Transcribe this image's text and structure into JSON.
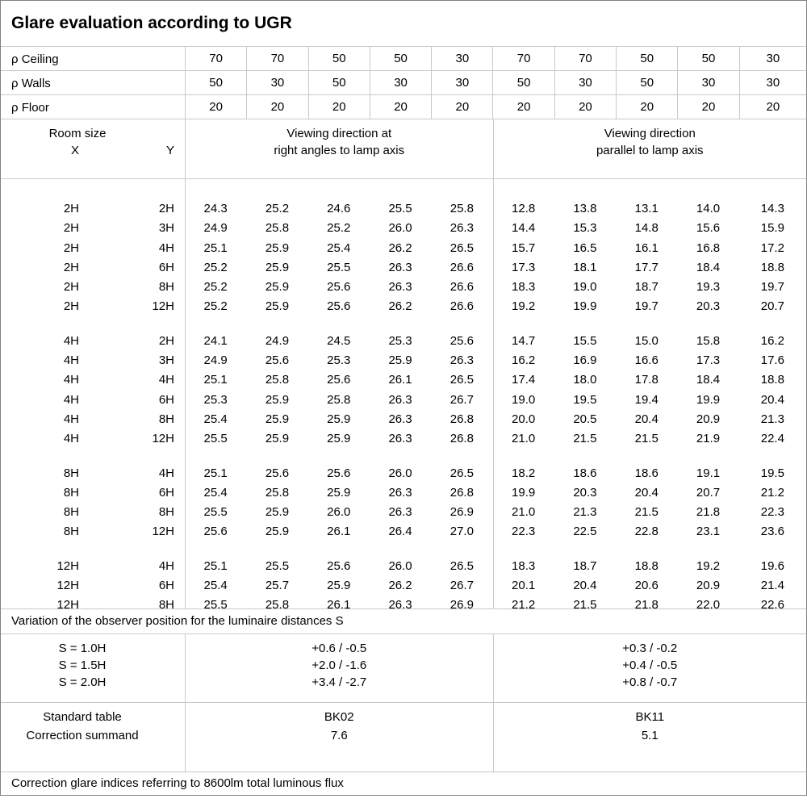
{
  "title": "Glare evaluation according to UGR",
  "reflectance_rows": [
    {
      "label": "ρ Ceiling",
      "values": [
        "70",
        "70",
        "50",
        "50",
        "30",
        "70",
        "70",
        "50",
        "50",
        "30"
      ]
    },
    {
      "label": "ρ Walls",
      "values": [
        "50",
        "30",
        "50",
        "30",
        "30",
        "50",
        "30",
        "50",
        "30",
        "30"
      ]
    },
    {
      "label": "ρ Floor",
      "values": [
        "20",
        "20",
        "20",
        "20",
        "20",
        "20",
        "20",
        "20",
        "20",
        "20"
      ]
    }
  ],
  "column_headers": {
    "room_size": "Room size",
    "x": "X",
    "y": "Y",
    "right_angles_line1": "Viewing direction at",
    "right_angles_line2": "right angles to lamp axis",
    "parallel_line1": "Viewing direction",
    "parallel_line2": "parallel to lamp axis"
  },
  "ugr_groups": [
    {
      "rows": [
        {
          "x": "2H",
          "y": "2H",
          "right_angles": [
            "24.3",
            "25.2",
            "24.6",
            "25.5",
            "25.8"
          ],
          "parallel": [
            "12.8",
            "13.8",
            "13.1",
            "14.0",
            "14.3"
          ]
        },
        {
          "x": "2H",
          "y": "3H",
          "right_angles": [
            "24.9",
            "25.8",
            "25.2",
            "26.0",
            "26.3"
          ],
          "parallel": [
            "14.4",
            "15.3",
            "14.8",
            "15.6",
            "15.9"
          ]
        },
        {
          "x": "2H",
          "y": "4H",
          "right_angles": [
            "25.1",
            "25.9",
            "25.4",
            "26.2",
            "26.5"
          ],
          "parallel": [
            "15.7",
            "16.5",
            "16.1",
            "16.8",
            "17.2"
          ]
        },
        {
          "x": "2H",
          "y": "6H",
          "right_angles": [
            "25.2",
            "25.9",
            "25.5",
            "26.3",
            "26.6"
          ],
          "parallel": [
            "17.3",
            "18.1",
            "17.7",
            "18.4",
            "18.8"
          ]
        },
        {
          "x": "2H",
          "y": "8H",
          "right_angles": [
            "25.2",
            "25.9",
            "25.6",
            "26.3",
            "26.6"
          ],
          "parallel": [
            "18.3",
            "19.0",
            "18.7",
            "19.3",
            "19.7"
          ]
        },
        {
          "x": "2H",
          "y": "12H",
          "right_angles": [
            "25.2",
            "25.9",
            "25.6",
            "26.2",
            "26.6"
          ],
          "parallel": [
            "19.2",
            "19.9",
            "19.7",
            "20.3",
            "20.7"
          ]
        }
      ]
    },
    {
      "rows": [
        {
          "x": "4H",
          "y": "2H",
          "right_angles": [
            "24.1",
            "24.9",
            "24.5",
            "25.3",
            "25.6"
          ],
          "parallel": [
            "14.7",
            "15.5",
            "15.0",
            "15.8",
            "16.2"
          ]
        },
        {
          "x": "4H",
          "y": "3H",
          "right_angles": [
            "24.9",
            "25.6",
            "25.3",
            "25.9",
            "26.3"
          ],
          "parallel": [
            "16.2",
            "16.9",
            "16.6",
            "17.3",
            "17.6"
          ]
        },
        {
          "x": "4H",
          "y": "4H",
          "right_angles": [
            "25.1",
            "25.8",
            "25.6",
            "26.1",
            "26.5"
          ],
          "parallel": [
            "17.4",
            "18.0",
            "17.8",
            "18.4",
            "18.8"
          ]
        },
        {
          "x": "4H",
          "y": "6H",
          "right_angles": [
            "25.3",
            "25.9",
            "25.8",
            "26.3",
            "26.7"
          ],
          "parallel": [
            "19.0",
            "19.5",
            "19.4",
            "19.9",
            "20.4"
          ]
        },
        {
          "x": "4H",
          "y": "8H",
          "right_angles": [
            "25.4",
            "25.9",
            "25.9",
            "26.3",
            "26.8"
          ],
          "parallel": [
            "20.0",
            "20.5",
            "20.4",
            "20.9",
            "21.3"
          ]
        },
        {
          "x": "4H",
          "y": "12H",
          "right_angles": [
            "25.5",
            "25.9",
            "25.9",
            "26.3",
            "26.8"
          ],
          "parallel": [
            "21.0",
            "21.5",
            "21.5",
            "21.9",
            "22.4"
          ]
        }
      ]
    },
    {
      "rows": [
        {
          "x": "8H",
          "y": "4H",
          "right_angles": [
            "25.1",
            "25.6",
            "25.6",
            "26.0",
            "26.5"
          ],
          "parallel": [
            "18.2",
            "18.6",
            "18.6",
            "19.1",
            "19.5"
          ]
        },
        {
          "x": "8H",
          "y": "6H",
          "right_angles": [
            "25.4",
            "25.8",
            "25.9",
            "26.3",
            "26.8"
          ],
          "parallel": [
            "19.9",
            "20.3",
            "20.4",
            "20.7",
            "21.2"
          ]
        },
        {
          "x": "8H",
          "y": "8H",
          "right_angles": [
            "25.5",
            "25.9",
            "26.0",
            "26.3",
            "26.9"
          ],
          "parallel": [
            "21.0",
            "21.3",
            "21.5",
            "21.8",
            "22.3"
          ]
        },
        {
          "x": "8H",
          "y": "12H",
          "right_angles": [
            "25.6",
            "25.9",
            "26.1",
            "26.4",
            "27.0"
          ],
          "parallel": [
            "22.3",
            "22.5",
            "22.8",
            "23.1",
            "23.6"
          ]
        }
      ]
    },
    {
      "rows": [
        {
          "x": "12H",
          "y": "4H",
          "right_angles": [
            "25.1",
            "25.5",
            "25.6",
            "26.0",
            "26.5"
          ],
          "parallel": [
            "18.3",
            "18.7",
            "18.8",
            "19.2",
            "19.6"
          ]
        },
        {
          "x": "12H",
          "y": "6H",
          "right_angles": [
            "25.4",
            "25.7",
            "25.9",
            "26.2",
            "26.7"
          ],
          "parallel": [
            "20.1",
            "20.4",
            "20.6",
            "20.9",
            "21.4"
          ]
        },
        {
          "x": "12H",
          "y": "8H",
          "right_angles": [
            "25.5",
            "25.8",
            "26.1",
            "26.3",
            "26.9"
          ],
          "parallel": [
            "21.2",
            "21.5",
            "21.8",
            "22.0",
            "22.6"
          ]
        }
      ]
    }
  ],
  "variation_section": {
    "title": "Variation of the observer position for the luminaire distances S",
    "rows": [
      {
        "label": "S = 1.0H",
        "right_angles": "+0.6 / -0.5",
        "parallel": "+0.3 / -0.2"
      },
      {
        "label": "S = 1.5H",
        "right_angles": "+2.0 / -1.6",
        "parallel": "+0.4 / -0.5"
      },
      {
        "label": "S = 2.0H",
        "right_angles": "+3.4 / -2.7",
        "parallel": "+0.8 / -0.7"
      }
    ]
  },
  "standard_section": {
    "rows": [
      {
        "label": "Standard table",
        "right_angles": "BK02",
        "parallel": "BK11"
      },
      {
        "label": "Correction summand",
        "right_angles": "7.6",
        "parallel": "5.1"
      }
    ]
  },
  "footer": "Correction glare indices referring to 8600lm total luminous flux",
  "colors": {
    "grid_line": "#c9c9c9",
    "outer_border": "#808080",
    "text": "#000000",
    "background": "#ffffff"
  }
}
